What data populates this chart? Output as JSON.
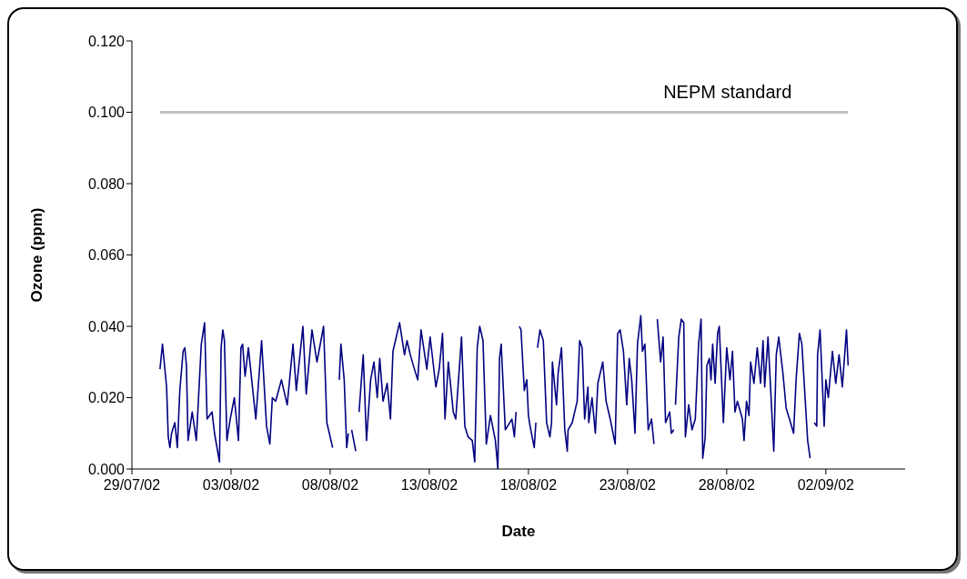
{
  "chart_data": {
    "type": "line",
    "xlabel": "Date",
    "ylabel": "Ozone (ppm)",
    "x": [
      "--07-30T10:00",
      "--07-30T13:00",
      "--07-30T18:00",
      "--07-30T20:00",
      "--07-30T22:00",
      "--07-31T00:00",
      "--07-31T04:00",
      "--07-31T07:00",
      "--07-31T10:00",
      "--07-31T14:00",
      "--07-31T16:00",
      "--07-31T18:00",
      "--07-31T20:00",
      "--08-01T01:00",
      "--08-01T06:00",
      "--08-01T12:00",
      "--08-01T16:00",
      "--08-01T19:00",
      "--08-02T01:00",
      "--08-02T04:00",
      "--08-02T10:00",
      "--08-02T12:00",
      "--08-02T14:00",
      "--08-02T16:00",
      "--08-02T19:00",
      "--08-02T23:00",
      "--08-03T04:00",
      "--08-03T09:00",
      "--08-03T12:00",
      "--08-03T14:00",
      "--08-03T17:00",
      "--08-03T21:00",
      "--08-04T06:00",
      "--08-04T13:00",
      "--08-04T19:00",
      "--08-04T23:00",
      "--08-05T02:00",
      "--08-05T06:00",
      "--08-05T13:00",
      "--08-05T20:00",
      "--08-06T03:00",
      "--08-06T07:00",
      "--08-06T15:00",
      "--08-06T19:00",
      "--08-07T02:00",
      "--08-07T08:00",
      "--08-07T16:00",
      "--08-07T20:00",
      "--08-08T03:00",
      "--08-08T06:00",
      "--08-08T11:00",
      "--08-08T13:00",
      "--08-08T17:00",
      "--08-08T20:00",
      "--08-08T22:00",
      "--08-08T23:00",
      "--08-09T02:00",
      "--08-09T07:00",
      "--08-09T09:00",
      "--08-09T11:00",
      "--08-09T16:00",
      "--08-09T20:00",
      "--08-10T01:00",
      "--08-10T05:00",
      "--08-10T09:00",
      "--08-10T12:00",
      "--08-10T16:00",
      "--08-10T21:00",
      "--08-11T01:00",
      "--08-11T04:00",
      "--08-11T12:00",
      "--08-11T18:00",
      "--08-11T21:00",
      "--08-12T01:00",
      "--08-12T06:00",
      "--08-12T10:00",
      "--08-12T14:00",
      "--08-12T21:00",
      "--08-13T01:00",
      "--08-13T08:00",
      "--08-13T12:00",
      "--08-13T16:00",
      "--08-13T19:00",
      "--08-13T23:00",
      "--08-14T05:00",
      "--08-14T08:00",
      "--08-14T15:00",
      "--08-14T19:00",
      "--08-14T23:00",
      "--08-15T04:00",
      "--08-15T07:00",
      "--08-15T10:00",
      "--08-15T13:00",
      "--08-15T17:00",
      "--08-15T21:00",
      "--08-16T02:00",
      "--08-16T08:00",
      "--08-16T11:00",
      "--08-16T13:00",
      "--08-16T15:00",
      "--08-16T20:00",
      "--08-17T04:00",
      "--08-17T07:00",
      "--08-17T09:00",
      "--08-17T11:00",
      "--08-17T13:00",
      "--08-17T15:00",
      "--08-17T19:00",
      "--08-17T22:00",
      "--08-18T00:00",
      "--08-18T02:00",
      "--08-18T07:00",
      "--08-18T09:00",
      "--08-18T10:00",
      "--08-18T11:00",
      "--08-18T14:00",
      "--08-18T18:00",
      "--08-18T22:00",
      "--08-19T02:00",
      "--08-19T04:00",
      "--08-19T05:00",
      "--08-19T10:00",
      "--08-19T12:00",
      "--08-19T16:00",
      "--08-19T20:00",
      "--08-19T23:00",
      "--08-20T00:00",
      "--08-20T05:00",
      "--08-20T11:00",
      "--08-20T14:00",
      "--08-20T17:00",
      "--08-20T20:00",
      "--08-21T00:00",
      "--08-21T01:00",
      "--08-21T05:00",
      "--08-21T09:00",
      "--08-21T12:00",
      "--08-21T18:00",
      "--08-21T22:00",
      "--08-22T03:00",
      "--08-22T09:00",
      "--08-22T12:00",
      "--08-22T15:00",
      "--08-22T19:00",
      "--08-22T23:00",
      "--08-23T02:00",
      "--08-23T05:00",
      "--08-23T09:00",
      "--08-23T12:00",
      "--08-23T16:00",
      "--08-23T18:00",
      "--08-23T21:00",
      "--08-24T01:00",
      "--08-24T05:00",
      "--08-24T08:00",
      "--08-24T09:00",
      "--08-24T12:00",
      "--08-24T16:00",
      "--08-24T19:00",
      "--08-24T22:00",
      "--08-25T03:00",
      "--08-25T05:00",
      "--08-25T08:00",
      "--08-25T09:00",
      "--08-25T10:00",
      "--08-25T14:00",
      "--08-25T17:00",
      "--08-25T20:00",
      "--08-25T22:00",
      "--08-26T02:00",
      "--08-26T06:00",
      "--08-26T10:00",
      "--08-26T14:00",
      "--08-26T17:00",
      "--08-26T19:00",
      "--08-26T22:00",
      "--08-27T00:00",
      "--08-27T03:00",
      "--08-27T05:00",
      "--08-27T07:00",
      "--08-27T10:00",
      "--08-27T13:00",
      "--08-27T15:00",
      "--08-27T20:00",
      "--08-28T00:00",
      "--08-28T04:00",
      "--08-28T07:00",
      "--08-28T10:00",
      "--08-28T13:00",
      "--08-28T19:00",
      "--08-28T21:00",
      "--08-29T00:00",
      "--08-29T03:00",
      "--08-29T05:00",
      "--08-29T09:00",
      "--08-29T13:00",
      "--08-29T17:00",
      "--08-29T20:00",
      "--08-29T22:00",
      "--08-30T02:00",
      "--08-30T09:00",
      "--08-30T12:00",
      "--08-30T15:00",
      "--08-30T20:00",
      "--08-31T00:00",
      "--08-31T04:00",
      "--08-31T09:00",
      "--08-31T12:00",
      "--08-31T16:00",
      "--08-31T19:00",
      "--09-01T02:00",
      "--09-01T05:00",
      "--09-01T07:00",
      "--09-01T10:00",
      "--09-01T13:00",
      "--09-01T14:00",
      "--09-01T17:00",
      "--09-01T22:00",
      "--09-02T00:00",
      "--09-02T03:00",
      "--09-02T08:00",
      "--09-02T12:00",
      "--09-02T16:00",
      "--09-02T20:00",
      "--09-03T01:00",
      "--09-03T03:00"
    ],
    "series": [
      {
        "color": "#000080",
        "values": [
          0.028,
          0.035,
          0.023,
          0.009,
          0.006,
          0.01,
          0.013,
          0.006,
          0.022,
          0.033,
          0.034,
          0.029,
          0.008,
          0.016,
          0.008,
          0.035,
          0.041,
          0.014,
          0.016,
          0.01,
          0.002,
          0.034,
          0.039,
          0.036,
          0.008,
          0.014,
          0.02,
          0.008,
          0.034,
          0.035,
          0.026,
          0.034,
          0.014,
          0.036,
          0.012,
          0.007,
          0.02,
          0.019,
          0.025,
          0.018,
          0.035,
          0.022,
          0.04,
          0.021,
          0.039,
          0.03,
          0.04,
          0.013,
          0.006,
          null,
          0.025,
          0.035,
          0.025,
          0.006,
          0.01,
          null,
          0.011,
          0.005,
          null,
          0.016,
          0.032,
          0.008,
          0.025,
          0.03,
          0.02,
          0.031,
          0.019,
          0.024,
          0.014,
          0.033,
          0.041,
          0.032,
          0.036,
          0.032,
          0.028,
          0.025,
          0.039,
          0.028,
          0.037,
          0.023,
          0.028,
          0.038,
          0.014,
          0.03,
          0.016,
          0.014,
          0.037,
          0.012,
          0.009,
          0.008,
          0.002,
          0.034,
          0.04,
          0.036,
          0.007,
          0.015,
          0.008,
          0.0,
          0.031,
          0.035,
          0.011,
          0.014,
          0.009,
          0.016,
          null,
          0.04,
          0.039,
          0.022,
          0.025,
          0.015,
          0.012,
          0.006,
          0.013,
          null,
          0.034,
          0.039,
          0.036,
          0.013,
          0.009,
          0.013,
          0.03,
          0.018,
          0.027,
          0.034,
          0.011,
          0.005,
          0.011,
          0.013,
          0.019,
          0.036,
          0.034,
          0.014,
          0.023,
          0.013,
          0.02,
          0.01,
          0.024,
          0.03,
          0.019,
          0.014,
          0.007,
          0.038,
          0.039,
          0.033,
          0.018,
          0.031,
          0.025,
          0.01,
          0.035,
          0.043,
          0.033,
          0.035,
          0.011,
          0.014,
          0.007,
          null,
          0.042,
          0.03,
          0.037,
          0.013,
          0.016,
          0.01,
          0.011,
          null,
          0.018,
          0.037,
          0.042,
          0.041,
          0.009,
          0.018,
          0.011,
          0.014,
          0.035,
          0.042,
          0.003,
          0.009,
          0.029,
          0.031,
          0.025,
          0.035,
          0.024,
          0.038,
          0.04,
          0.013,
          0.034,
          0.025,
          0.033,
          0.016,
          0.019,
          0.014,
          0.008,
          0.019,
          0.015,
          0.03,
          0.024,
          0.034,
          0.024,
          0.036,
          0.023,
          0.037,
          0.005,
          0.032,
          0.037,
          0.027,
          0.017,
          0.014,
          0.01,
          0.025,
          0.038,
          0.035,
          0.008,
          0.003,
          null,
          0.013,
          0.012,
          0.032,
          0.039,
          0.012,
          0.025,
          0.02,
          0.033,
          0.024,
          0.032,
          0.023,
          0.039,
          0.029
        ]
      }
    ],
    "xlim": [
      "--07-29",
      "--09-06"
    ],
    "xticks": [
      {
        "value": "--07-29",
        "label": "29/07/02"
      },
      {
        "value": "--08-03",
        "label": "03/08/02"
      },
      {
        "value": "--08-08",
        "label": "08/08/02"
      },
      {
        "value": "--08-13",
        "label": "13/08/02"
      },
      {
        "value": "--08-18",
        "label": "18/08/02"
      },
      {
        "value": "--08-23",
        "label": "23/08/02"
      },
      {
        "value": "--08-28",
        "label": "28/08/02"
      },
      {
        "value": "--09-02",
        "label": "02/09/02"
      }
    ],
    "ylim": [
      0,
      0.12
    ],
    "yticks": [
      {
        "value": 0,
        "label": "0.000"
      },
      {
        "value": 0.02,
        "label": "0.020"
      },
      {
        "value": 0.04,
        "label": "0.040"
      },
      {
        "value": 0.06,
        "label": "0.060"
      },
      {
        "value": 0.08,
        "label": "0.080"
      },
      {
        "value": 0.1,
        "label": "0.100"
      },
      {
        "value": 0.12,
        "label": "0.120"
      }
    ],
    "ref_lines": [
      {
        "axis": "y",
        "value": 0.1,
        "label": "NEPM standard",
        "color": "#c0c0c0"
      }
    ],
    "marker": "none",
    "line_style": "solid"
  }
}
